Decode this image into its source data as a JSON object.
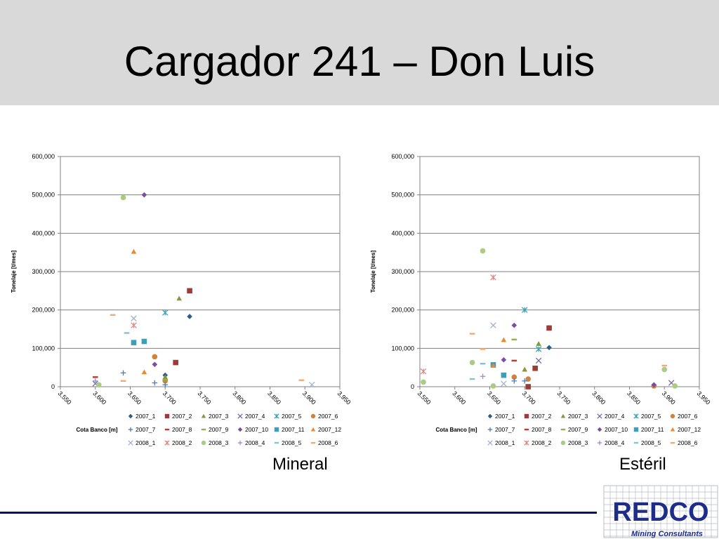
{
  "slide": {
    "title": "Cargador 241 – Don Luis"
  },
  "logo": {
    "name": "REDCO",
    "tagline": "Mining Consultants",
    "colors": {
      "text": "#1f2d8a",
      "tagline": "#1f2d8a",
      "grid": "#b8bcc8"
    }
  },
  "legend_series": [
    {
      "name": "2007_1",
      "color": "#2e5c8a",
      "marker": "diamond"
    },
    {
      "name": "2007_2",
      "color": "#9e3b36",
      "marker": "square"
    },
    {
      "name": "2007_3",
      "color": "#7e9a3d",
      "marker": "triangle"
    },
    {
      "name": "2007_4",
      "color": "#7a67a0",
      "marker": "x"
    },
    {
      "name": "2007_5",
      "color": "#3aa0b8",
      "marker": "star"
    },
    {
      "name": "2007_6",
      "color": "#d0843a",
      "marker": "circle"
    },
    {
      "name": "2007_7",
      "color": "#4a7dc0",
      "marker": "plus"
    },
    {
      "name": "2007_8",
      "color": "#c0392b",
      "marker": "dash"
    },
    {
      "name": "2007_9",
      "color": "#8fb04a",
      "marker": "dash"
    },
    {
      "name": "2007_10",
      "color": "#7b4fa0",
      "marker": "diamond"
    },
    {
      "name": "2007_11",
      "color": "#3aa0b8",
      "marker": "square"
    },
    {
      "name": "2007_12",
      "color": "#e88a2e",
      "marker": "triangle"
    },
    {
      "name": "2008_1",
      "color": "#9db3d9",
      "marker": "x"
    },
    {
      "name": "2008_2",
      "color": "#d98a88",
      "marker": "star"
    },
    {
      "name": "2008_3",
      "color": "#a8cc82",
      "marker": "circle"
    },
    {
      "name": "2008_4",
      "color": "#a08cc0",
      "marker": "plus"
    },
    {
      "name": "2008_5",
      "color": "#7fc4d6",
      "marker": "dash"
    },
    {
      "name": "2008_6",
      "color": "#f0ab74",
      "marker": "dash"
    }
  ],
  "chart_data": [
    {
      "type": "scatter",
      "caption": "Mineral",
      "xlabel": "Cota Banco  [m]",
      "ylabel": "Tonelaje [t/mes]",
      "xlim": [
        3550,
        3950
      ],
      "ylim": [
        0,
        600000
      ],
      "x_ticks": [
        "3,550",
        "3,600",
        "3,650",
        "3,700",
        "3,750",
        "3,800",
        "3,850",
        "3,900",
        "3,950"
      ],
      "y_ticks": [
        "0",
        "100,000",
        "200,000",
        "300,000",
        "400,000",
        "500,000",
        "600,000"
      ],
      "grid": true,
      "legend_position": "bottom",
      "series": [
        {
          "name": "2007_1",
          "points": [
            [
              3700,
              30000
            ],
            [
              3735,
              183000
            ]
          ]
        },
        {
          "name": "2007_2",
          "points": [
            [
              3715,
              63000
            ],
            [
              3735,
              250000
            ]
          ]
        },
        {
          "name": "2007_3",
          "points": [
            [
              3700,
              25000
            ],
            [
              3720,
              230000
            ]
          ]
        },
        {
          "name": "2007_4",
          "points": [
            [
              3600,
              8000
            ]
          ]
        },
        {
          "name": "2007_5",
          "points": [
            [
              3700,
              193000
            ]
          ]
        },
        {
          "name": "2007_6",
          "points": [
            [
              3685,
              78000
            ],
            [
              3700,
              15000
            ]
          ]
        },
        {
          "name": "2007_7",
          "points": [
            [
              3640,
              36000
            ],
            [
              3685,
              10000
            ],
            [
              3700,
              5000
            ]
          ]
        },
        {
          "name": "2007_8",
          "points": [
            [
              3600,
              25000
            ]
          ]
        },
        {
          "name": "2007_9",
          "points": [
            [
              3700,
              18000
            ]
          ]
        },
        {
          "name": "2007_10",
          "points": [
            [
              3670,
              500000
            ],
            [
              3685,
              58000
            ]
          ]
        },
        {
          "name": "2007_11",
          "points": [
            [
              3655,
              115000
            ],
            [
              3670,
              118000
            ]
          ]
        },
        {
          "name": "2007_12",
          "points": [
            [
              3655,
              352000
            ],
            [
              3670,
              38000
            ]
          ]
        },
        {
          "name": "2008_1",
          "points": [
            [
              3655,
              178000
            ],
            [
              3910,
              5000
            ]
          ]
        },
        {
          "name": "2008_2",
          "points": [
            [
              3655,
              160000
            ]
          ]
        },
        {
          "name": "2008_3",
          "points": [
            [
              3640,
              493000
            ],
            [
              3605,
              5000
            ]
          ]
        },
        {
          "name": "2008_4",
          "points": [
            [
              3600,
              15000
            ]
          ]
        },
        {
          "name": "2008_5",
          "points": [
            [
              3645,
              140000
            ]
          ]
        },
        {
          "name": "2008_6",
          "points": [
            [
              3625,
              187000
            ],
            [
              3640,
              15000
            ],
            [
              3895,
              17000
            ]
          ]
        }
      ]
    },
    {
      "type": "scatter",
      "caption": "Estéril",
      "xlabel": "Cota Banco  [m]",
      "ylabel": "Tonelaje [t/mes]",
      "xlim": [
        3550,
        3950
      ],
      "ylim": [
        0,
        600000
      ],
      "x_ticks": [
        "3,550",
        "3,600",
        "3,650",
        "3,700",
        "3,750",
        "3,800",
        "3,850",
        "3,900",
        "3,950"
      ],
      "y_ticks": [
        "0",
        "100,000",
        "200,000",
        "300,000",
        "400,000",
        "500,000",
        "600,000"
      ],
      "grid": true,
      "legend_position": "bottom",
      "series": [
        {
          "name": "2007_1",
          "points": [
            [
              3735,
              102000
            ]
          ]
        },
        {
          "name": "2007_2",
          "points": [
            [
              3705,
              0
            ],
            [
              3715,
              48000
            ],
            [
              3735,
              153000
            ]
          ]
        },
        {
          "name": "2007_3",
          "points": [
            [
              3700,
              45000
            ],
            [
              3720,
              112000
            ]
          ]
        },
        {
          "name": "2007_4",
          "points": [
            [
              3720,
              68000
            ],
            [
              3910,
              10000
            ]
          ]
        },
        {
          "name": "2007_5",
          "points": [
            [
              3700,
              200000
            ],
            [
              3720,
              98000
            ]
          ]
        },
        {
          "name": "2007_6",
          "points": [
            [
              3685,
              25000
            ],
            [
              3705,
              20000
            ],
            [
              3885,
              2000
            ]
          ]
        },
        {
          "name": "2007_7",
          "points": [
            [
              3685,
              15000
            ],
            [
              3700,
              15000
            ]
          ]
        },
        {
          "name": "2007_8",
          "points": [
            [
              3685,
              68000
            ]
          ]
        },
        {
          "name": "2007_9",
          "points": [
            [
              3685,
              123000
            ]
          ]
        },
        {
          "name": "2007_10",
          "points": [
            [
              3685,
              160000
            ],
            [
              3670,
              70000
            ],
            [
              3885,
              5000
            ]
          ]
        },
        {
          "name": "2007_11",
          "points": [
            [
              3655,
              57000
            ],
            [
              3670,
              30000
            ]
          ]
        },
        {
          "name": "2007_12",
          "points": [
            [
              3670,
              122000
            ],
            [
              3655,
              55000
            ]
          ]
        },
        {
          "name": "2008_1",
          "points": [
            [
              3655,
              160000
            ],
            [
              3670,
              8000
            ]
          ]
        },
        {
          "name": "2008_2",
          "points": [
            [
              3655,
              285000
            ],
            [
              3555,
              40000
            ]
          ]
        },
        {
          "name": "2008_3",
          "points": [
            [
              3640,
              354000
            ],
            [
              3625,
              63000
            ],
            [
              3555,
              12000
            ],
            [
              3655,
              2000
            ],
            [
              3900,
              45000
            ],
            [
              3915,
              2000
            ]
          ]
        },
        {
          "name": "2008_4",
          "points": [
            [
              3640,
              27000
            ]
          ]
        },
        {
          "name": "2008_5",
          "points": [
            [
              3625,
              20000
            ],
            [
              3640,
              60000
            ]
          ]
        },
        {
          "name": "2008_6",
          "points": [
            [
              3625,
              138000
            ],
            [
              3640,
              98000
            ],
            [
              3900,
              55000
            ]
          ]
        }
      ]
    }
  ]
}
